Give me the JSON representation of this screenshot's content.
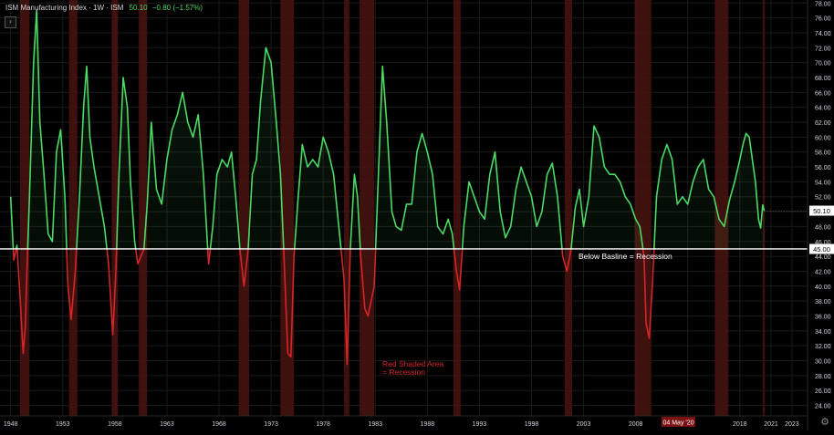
{
  "legend": {
    "symbol": "ISM Manufacturing Index · 1W · ISM",
    "last_value": "50.10",
    "change": "−0.80 (−1.57%)"
  },
  "colors": {
    "above": "#4cd964",
    "below": "#d32626",
    "recession_band": "#4a1410",
    "baseline": "#ffffff",
    "grid": "#1a1a1a",
    "axis_text": "#d1d4dc"
  },
  "icons": {
    "collapse": "chevron-right-icon",
    "settings": "gear-icon"
  },
  "labels": {
    "baseline_note": "Below Basline = Recession",
    "recession_note_line1": "Red Shaded Area",
    "recession_note_line2": "= Recession",
    "last_price_tag": "50.10",
    "baseline_tag": "45.00",
    "date_tag": "04 May '20",
    "collapse_glyph": "›",
    "settings_glyph": "⚙"
  },
  "chart_data": {
    "type": "line",
    "title": "ISM Manufacturing Index",
    "xlabel": "",
    "ylabel": "",
    "xlim": [
      1947.5,
      2024.5
    ],
    "ylim": [
      22.6,
      78.4
    ],
    "y_ticks": [
      24,
      26,
      28,
      30,
      32,
      34,
      36,
      38,
      40,
      42,
      44,
      46,
      48,
      50,
      52,
      54,
      56,
      58,
      60,
      62,
      64,
      66,
      68,
      70,
      72,
      74,
      76,
      78
    ],
    "x_tick_labels": [
      "1948",
      "1953",
      "1958",
      "1963",
      "1968",
      "1973",
      "1978",
      "1983",
      "1988",
      "1993",
      "1998",
      "2003",
      "2008",
      "2013",
      "2018",
      "2021",
      "2023"
    ],
    "x_tick_years": [
      1948,
      1953,
      1958,
      1963,
      1968,
      1973,
      1978,
      1983,
      1988,
      1993,
      1998,
      2003,
      2008,
      2013,
      2018,
      2021,
      2023
    ],
    "baseline": 45.0,
    "grid": true,
    "recessions": [
      [
        1948.9,
        1949.8
      ],
      [
        1953.6,
        1954.4
      ],
      [
        1957.7,
        1958.3
      ],
      [
        1960.3,
        1961.1
      ],
      [
        1969.9,
        1970.9
      ],
      [
        1973.9,
        1975.2
      ],
      [
        1980.0,
        1980.5
      ],
      [
        1981.5,
        1982.9
      ],
      [
        1990.5,
        1991.2
      ],
      [
        2001.2,
        2001.9
      ],
      [
        2007.9,
        2009.5
      ],
      [
        2015.6,
        2016.9
      ],
      [
        2020.2,
        2020.4
      ]
    ],
    "series": [
      {
        "x": [
          1948.0,
          1948.3,
          1948.6,
          1948.9,
          1949.2,
          1949.4,
          1949.6,
          1949.8,
          1950.2,
          1950.5,
          1950.8,
          1951.2,
          1951.6,
          1952.0,
          1952.4,
          1952.8,
          1953.2,
          1953.5,
          1953.8,
          1954.2,
          1954.6,
          1955.0,
          1955.3,
          1955.6,
          1956.0,
          1956.5,
          1957.0,
          1957.4,
          1957.8,
          1958.1,
          1958.4,
          1958.8,
          1959.2,
          1959.5,
          1959.9,
          1960.2,
          1960.5,
          1960.8,
          1961.1,
          1961.5,
          1962.0,
          1962.5,
          1963.0,
          1963.5,
          1964.0,
          1964.5,
          1965.0,
          1965.5,
          1966.0,
          1966.5,
          1967.0,
          1967.4,
          1967.8,
          1968.3,
          1968.8,
          1969.2,
          1969.6,
          1970.0,
          1970.4,
          1970.8,
          1971.2,
          1971.6,
          1972.0,
          1972.5,
          1973.0,
          1973.5,
          1973.9,
          1974.3,
          1974.6,
          1974.9,
          1975.2,
          1975.6,
          1976.0,
          1976.5,
          1977.0,
          1977.5,
          1978.0,
          1978.5,
          1979.0,
          1979.5,
          1980.0,
          1980.3,
          1980.6,
          1981.0,
          1981.3,
          1981.6,
          1982.0,
          1982.3,
          1982.6,
          1982.9,
          1983.3,
          1983.7,
          1984.1,
          1984.6,
          1985.0,
          1985.5,
          1986.0,
          1986.5,
          1987.0,
          1987.5,
          1988.0,
          1988.5,
          1989.0,
          1989.5,
          1990.0,
          1990.4,
          1990.8,
          1991.1,
          1991.5,
          1992.0,
          1992.5,
          1993.0,
          1993.5,
          1994.0,
          1994.5,
          1995.0,
          1995.5,
          1996.0,
          1996.5,
          1997.0,
          1997.5,
          1998.0,
          1998.5,
          1999.0,
          1999.5,
          2000.0,
          2000.5,
          2001.0,
          2001.4,
          2001.8,
          2002.2,
          2002.6,
          2003.0,
          2003.5,
          2004.0,
          2004.5,
          2005.0,
          2005.5,
          2006.0,
          2006.5,
          2007.0,
          2007.5,
          2008.0,
          2008.4,
          2008.8,
          2009.0,
          2009.3,
          2009.6,
          2010.0,
          2010.5,
          2011.0,
          2011.5,
          2012.0,
          2012.5,
          2013.0,
          2013.5,
          2014.0,
          2014.5,
          2015.0,
          2015.5,
          2016.0,
          2016.5,
          2017.0,
          2017.5,
          2018.0,
          2018.3,
          2018.6,
          2018.9,
          2019.2,
          2019.5,
          2019.8,
          2020.0,
          2020.2,
          2020.35
        ],
        "y": [
          52.0,
          43.5,
          45.5,
          38.5,
          31.0,
          34.5,
          44.0,
          52.0,
          70.0,
          77.0,
          62.0,
          55.0,
          47.0,
          46.0,
          58.0,
          61.0,
          52.0,
          40.0,
          35.5,
          42.0,
          52.0,
          64.0,
          69.5,
          60.0,
          56.0,
          52.0,
          48.0,
          43.0,
          33.5,
          42.0,
          55.0,
          68.0,
          64.0,
          54.0,
          46.0,
          43.0,
          44.0,
          45.0,
          51.0,
          62.0,
          53.0,
          51.0,
          57.0,
          61.0,
          63.0,
          66.0,
          62.0,
          60.0,
          63.0,
          55.0,
          43.0,
          48.0,
          55.0,
          57.0,
          56.0,
          58.0,
          52.0,
          45.0,
          40.0,
          45.0,
          55.0,
          57.0,
          65.0,
          72.0,
          70.0,
          62.0,
          55.0,
          42.0,
          31.0,
          30.5,
          44.0,
          52.0,
          59.0,
          56.0,
          57.0,
          56.0,
          60.0,
          58.0,
          55.0,
          48.0,
          41.0,
          29.5,
          45.0,
          55.0,
          52.0,
          44.0,
          37.0,
          36.0,
          38.0,
          40.0,
          55.0,
          69.5,
          62.0,
          50.0,
          48.0,
          47.5,
          51.0,
          51.0,
          58.0,
          60.5,
          58.0,
          55.0,
          48.0,
          47.0,
          49.0,
          47.0,
          42.0,
          39.5,
          48.0,
          54.0,
          52.0,
          50.0,
          49.0,
          55.0,
          58.0,
          50.0,
          46.5,
          48.0,
          53.0,
          56.0,
          54.0,
          52.0,
          48.0,
          50.0,
          55.0,
          56.5,
          52.0,
          44.0,
          42.0,
          45.0,
          50.5,
          53.0,
          48.0,
          52.0,
          61.5,
          60.0,
          56.0,
          55.0,
          55.0,
          54.0,
          52.0,
          51.0,
          49.0,
          48.0,
          44.0,
          35.0,
          33.0,
          40.0,
          52.0,
          57.0,
          59.0,
          57.0,
          51.0,
          52.0,
          51.0,
          54.0,
          56.0,
          57.0,
          53.0,
          52.0,
          49.0,
          48.0,
          51.5,
          54.0,
          57.0,
          59.0,
          60.5,
          60.0,
          57.0,
          54.0,
          49.0,
          47.8,
          50.9,
          50.1
        ]
      }
    ]
  }
}
